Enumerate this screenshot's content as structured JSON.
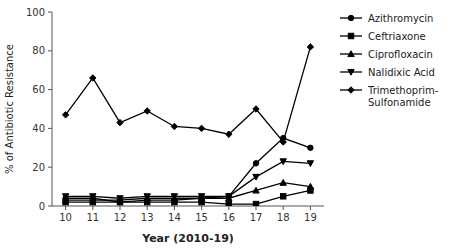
{
  "chart_data": {
    "type": "line",
    "x": [
      10,
      11,
      12,
      13,
      14,
      15,
      16,
      17,
      18,
      19
    ],
    "series": [
      {
        "name": "Azithromycin",
        "color": "#000000",
        "marker": "circle",
        "values": [
          4,
          4,
          2,
          3,
          3,
          4,
          5,
          22,
          35,
          30
        ]
      },
      {
        "name": "Ceftriaxone",
        "color": "#000000",
        "marker": "square",
        "values": [
          2,
          2,
          2,
          2,
          2,
          2,
          1,
          1,
          5,
          8
        ]
      },
      {
        "name": "Ciprofloxacin",
        "color": "#000000",
        "marker": "triangle-up",
        "values": [
          3,
          3,
          3,
          4,
          4,
          4,
          4,
          8,
          12,
          10
        ]
      },
      {
        "name": "Nalidixic Acid",
        "color": "#000000",
        "marker": "triangle-down",
        "values": [
          5,
          5,
          4,
          5,
          5,
          5,
          5,
          15,
          23,
          22
        ]
      },
      {
        "name": "Trimethoprim-\nSulfonamide",
        "color": "#000000",
        "marker": "diamond",
        "values": [
          47,
          66,
          43,
          49,
          41,
          40,
          37,
          50,
          33,
          82
        ]
      }
    ],
    "x_label": "Year (2010-19)",
    "y_label": "% of Antibiotic Resistance",
    "xlim": [
      9.5,
      19.5
    ],
    "ylim": [
      0,
      100
    ],
    "xticks": [
      10,
      11,
      12,
      13,
      14,
      15,
      16,
      17,
      18,
      19
    ],
    "yticks": [
      0,
      20,
      40,
      60,
      80,
      100
    ],
    "grid": false,
    "legend": "right"
  }
}
